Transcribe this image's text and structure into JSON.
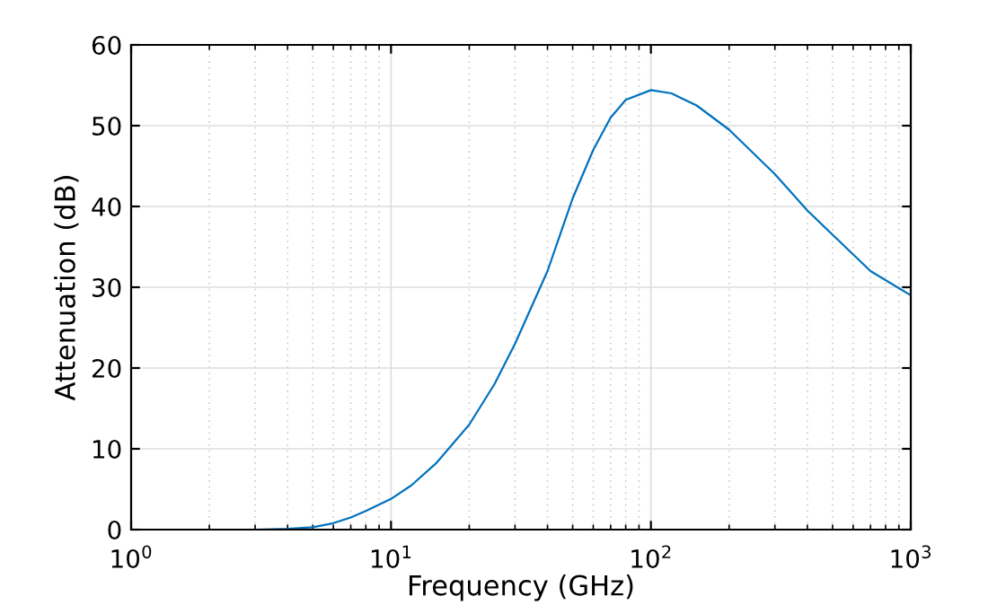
{
  "chart_data": {
    "type": "line",
    "xlabel": "Frequency (GHz)",
    "ylabel": "Attenuation (dB)",
    "log": "x",
    "x": [
      1,
      2,
      3,
      4,
      5,
      6,
      7,
      8,
      10,
      12,
      15,
      20,
      25,
      30,
      40,
      50,
      60,
      70,
      80,
      100,
      120,
      150,
      200,
      300,
      400,
      500,
      700,
      1000
    ],
    "series": [
      {
        "color": "#0072bd",
        "values": [
          0,
          0,
          0,
          0.1,
          0.3,
          0.8,
          1.5,
          2.3,
          3.8,
          5.5,
          8.3,
          13,
          18,
          23,
          32,
          41,
          47,
          51,
          53.2,
          54.4,
          54,
          52.5,
          49.5,
          44,
          39.5,
          36.5,
          32,
          29
        ]
      }
    ],
    "xlim": [
      1,
      1000
    ],
    "xticks": [
      {
        "value": 1,
        "label": "10$^{0}$"
      },
      {
        "value": 10,
        "label": "10$^{1}$"
      },
      {
        "value": 100,
        "label": "10$^{2}$"
      },
      {
        "value": 1000,
        "label": "10$^{3}$"
      }
    ],
    "ylim": [
      0,
      60
    ],
    "yticks": [
      0,
      10,
      20,
      30,
      40,
      50,
      60
    ],
    "grid": true,
    "marker": "none",
    "line_style": "solid"
  }
}
